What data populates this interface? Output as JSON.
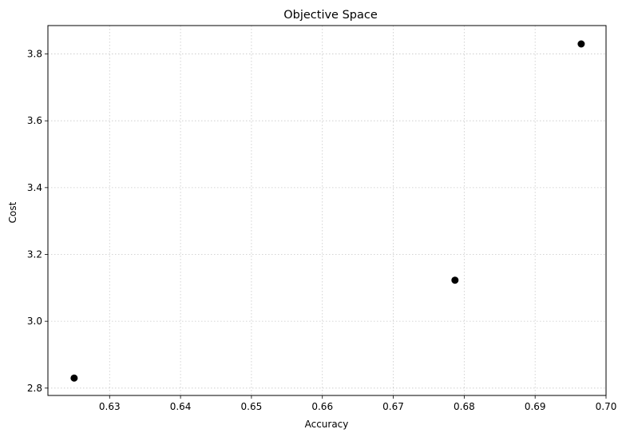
{
  "chart_data": {
    "type": "scatter",
    "title": "Objective Space",
    "xlabel": "Accuracy",
    "ylabel": "Cost",
    "xlim": [
      0.6213,
      0.7
    ],
    "ylim": [
      2.778,
      3.885
    ],
    "xticks": [
      0.63,
      0.64,
      0.65,
      0.66,
      0.67,
      0.68,
      0.69,
      0.7
    ],
    "xtick_labels": [
      "0.63",
      "0.64",
      "0.65",
      "0.66",
      "0.67",
      "0.68",
      "0.69",
      "0.70"
    ],
    "yticks": [
      2.8,
      3.0,
      3.2,
      3.4,
      3.6,
      3.8
    ],
    "ytick_labels": [
      "2.8",
      "3.0",
      "3.2",
      "3.4",
      "3.6",
      "3.8"
    ],
    "grid": true,
    "series": [
      {
        "color": "#000000",
        "points": [
          {
            "x": 0.625,
            "y": 2.83
          },
          {
            "x": 0.6787,
            "y": 3.123
          },
          {
            "x": 0.6965,
            "y": 3.83
          }
        ]
      }
    ]
  }
}
